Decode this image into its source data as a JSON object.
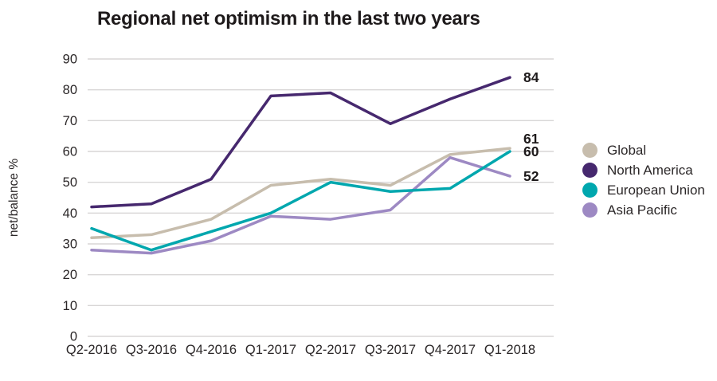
{
  "title": "Regional net optimism in the last two years",
  "y_axis_title": "net/balance %",
  "legend": [
    {
      "label": "Global",
      "color": "#c7bdad"
    },
    {
      "label": "North America",
      "color": "#46286e"
    },
    {
      "label": "European Union",
      "color": "#00a7ae"
    },
    {
      "label": "Asia Pacific",
      "color": "#9d89c3"
    }
  ],
  "colors": {
    "grid": "#d8d6d6",
    "axis_text": "#2b2728",
    "end_label_text": "#1e1a1b",
    "background": "#ffffff"
  },
  "chart_data": {
    "type": "line",
    "title": "Regional net optimism in the last two years",
    "xlabel": "",
    "ylabel": "net/balance %",
    "categories": [
      "Q2-2016",
      "Q3-2016",
      "Q4-2016",
      "Q1-2017",
      "Q2-2017",
      "Q3-2017",
      "Q4-2017",
      "Q1-2018"
    ],
    "series": [
      {
        "name": "Global",
        "color": "#c7bdad",
        "values": [
          32,
          33,
          38,
          49,
          51,
          49,
          59,
          61
        ],
        "end_label": "61"
      },
      {
        "name": "North America",
        "color": "#46286e",
        "values": [
          42,
          43,
          51,
          78,
          79,
          69,
          77,
          84
        ],
        "end_label": "84"
      },
      {
        "name": "European Union",
        "color": "#00a7ae",
        "values": [
          35,
          28,
          34,
          40,
          50,
          47,
          48,
          60
        ],
        "end_label": "60"
      },
      {
        "name": "Asia Pacific",
        "color": "#9d89c3",
        "values": [
          28,
          27,
          31,
          39,
          38,
          41,
          58,
          52
        ],
        "end_label": "52"
      }
    ],
    "ylim": [
      0,
      90
    ],
    "ytick_interval": 10,
    "grid": "horizontal",
    "legend_position": "right",
    "draw_order": [
      0,
      3,
      2,
      1
    ]
  }
}
